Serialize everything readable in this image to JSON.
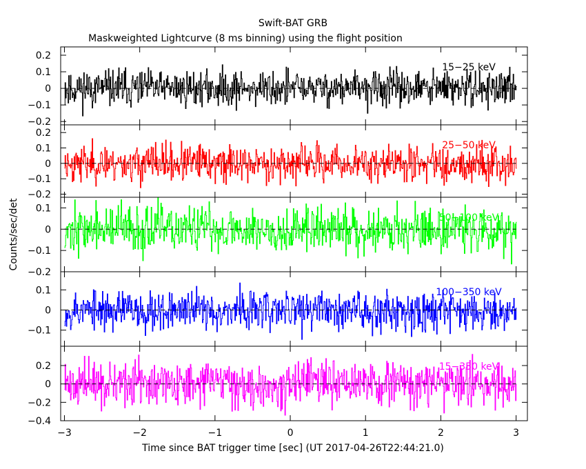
{
  "title": "Swift-BAT GRB",
  "subtitle": "Maskweighted Lightcurve (8 ms binning) using the flight position",
  "colors": {
    "background": "#ffffff",
    "axes": "#000000",
    "zero_line": "#000000"
  },
  "chart_data": {
    "type": "line",
    "style": "step",
    "xlabel": "Time since BAT trigger time [sec] (UT 2017-04-26T22:44:21.0)",
    "ylabel": "Counts/sec/det",
    "xlim": [
      -3.05,
      3.15
    ],
    "x_ticks": [
      -3,
      -2,
      -1,
      0,
      1,
      2,
      3
    ],
    "x_tick_labels": [
      "−3",
      "−2",
      "−1",
      "0",
      "1",
      "2",
      "3"
    ],
    "bin_width_sec": 0.008,
    "grid": false,
    "zero_line": true,
    "panels": [
      {
        "name": "15-25 keV",
        "label": "15−25 keV",
        "color": "#000000",
        "ylim": [
          -0.22,
          0.25
        ],
        "y_ticks": [
          -0.2,
          -0.1,
          0,
          0.1,
          0.2
        ],
        "y_tick_labels": [
          "−0.2",
          "−0.1",
          "0",
          "0.1",
          "0.2"
        ],
        "noise_sigma": 0.055,
        "noise_max": 0.22,
        "seed": 11
      },
      {
        "name": "25-50 keV",
        "label": "25−50 keV",
        "color": "#ff0000",
        "ylim": [
          -0.22,
          0.25
        ],
        "y_ticks": [
          -0.2,
          -0.1,
          0,
          0.1,
          0.2
        ],
        "y_tick_labels": [
          "−0.2",
          "−0.1",
          "0",
          "0.1",
          "0.2"
        ],
        "noise_sigma": 0.06,
        "noise_max": 0.22,
        "seed": 23
      },
      {
        "name": "50-100 keV",
        "label": "50−100 keV",
        "color": "#00ff00",
        "ylim": [
          -0.2,
          0.15
        ],
        "y_ticks": [
          -0.2,
          -0.1,
          0,
          0.1
        ],
        "y_tick_labels": [
          "−0.2",
          "−0.1",
          "0",
          "0.1"
        ],
        "noise_sigma": 0.055,
        "noise_max": 0.19,
        "seed": 37
      },
      {
        "name": "100-350 keV",
        "label": "100−350 keV",
        "color": "#0000ff",
        "ylim": [
          -0.18,
          0.19
        ],
        "y_ticks": [
          -0.1,
          0,
          0.1
        ],
        "y_tick_labels": [
          "−0.1",
          "0",
          "0.1"
        ],
        "noise_sigma": 0.05,
        "noise_max": 0.17,
        "seed": 53
      },
      {
        "name": "15-350 keV",
        "label": "15−350 keV",
        "color": "#ff00ff",
        "ylim": [
          -0.4,
          0.41
        ],
        "y_ticks": [
          -0.4,
          -0.2,
          0,
          0.2
        ],
        "y_tick_labels": [
          "−0.4",
          "−0.2",
          "0",
          "0.2"
        ],
        "noise_sigma": 0.12,
        "noise_max": 0.39,
        "seed": 71
      }
    ]
  }
}
